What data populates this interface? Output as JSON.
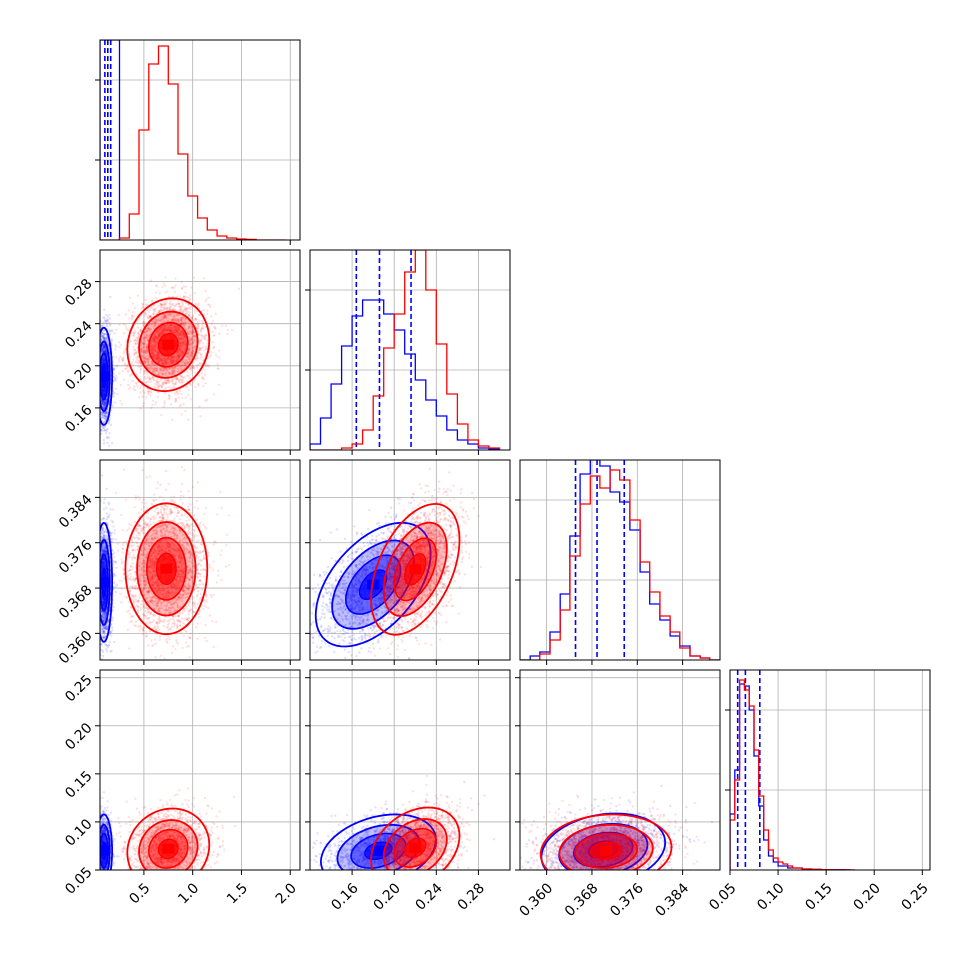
{
  "chart_data": {
    "type": "corner",
    "title": "",
    "n_params": 4,
    "grid": true,
    "colors": {
      "series_blue": "#0000ff",
      "series_red": "#ff0000",
      "grid": "#b0b0b0",
      "axes": "#000000"
    },
    "params": [
      {
        "range": [
          0.05,
          2.1
        ],
        "ticks": [
          0.5,
          1.0,
          1.5,
          2.0
        ],
        "tick_labels": [
          "0.5",
          "1.0",
          "1.5",
          "2.0"
        ]
      },
      {
        "range": [
          0.12,
          0.31
        ],
        "ticks": [
          0.16,
          0.2,
          0.24,
          0.28
        ],
        "tick_labels": [
          "0.16",
          "0.20",
          "0.24",
          "0.28"
        ]
      },
      {
        "range": [
          0.3553,
          0.3906
        ],
        "ticks": [
          0.36,
          0.368,
          0.376,
          0.384
        ],
        "tick_labels": [
          "0.360",
          "0.368",
          "0.376",
          "0.384"
        ]
      },
      {
        "range": [
          0.05,
          0.258
        ],
        "ticks": [
          0.05,
          0.1,
          0.15,
          0.2,
          0.25
        ],
        "tick_labels": [
          "0.05",
          "0.10",
          "0.15",
          "0.20",
          "0.25"
        ]
      }
    ],
    "series": [
      {
        "color": "blue",
        "histograms": [
          {
            "edges": [
              0.05,
              0.25
            ],
            "counts": [
              1.0
            ],
            "quantiles": [
              0.1,
              0.13,
              0.16
            ]
          },
          {
            "edges": [
              0.12,
              0.13,
              0.14,
              0.15,
              0.16,
              0.17,
              0.18,
              0.19,
              0.2,
              0.21,
              0.22,
              0.23,
              0.24,
              0.25,
              0.26,
              0.27,
              0.28,
              0.29,
              0.3
            ],
            "counts": [
              0.03,
              0.16,
              0.33,
              0.52,
              0.67,
              0.75,
              0.75,
              0.68,
              0.6,
              0.48,
              0.35,
              0.25,
              0.17,
              0.1,
              0.05,
              0.03,
              0.01,
              0.005
            ],
            "quantiles": [
              0.164,
              0.186,
              0.216
            ]
          },
          {
            "edges": [
              0.3553,
              0.3571,
              0.3588,
              0.3606,
              0.3624,
              0.3641,
              0.3659,
              0.3677,
              0.3694,
              0.3712,
              0.3729,
              0.3747,
              0.3765,
              0.3782,
              0.38,
              0.3818,
              0.3835,
              0.3853,
              0.3871,
              0.3888,
              0.3906
            ],
            "counts": [
              0.0,
              0.02,
              0.04,
              0.14,
              0.33,
              0.62,
              0.93,
              1.0,
              0.97,
              0.84,
              0.79,
              0.65,
              0.44,
              0.28,
              0.2,
              0.12,
              0.07,
              0.02,
              0.01,
              0.0
            ],
            "quantiles": [
              0.3651,
              0.3689,
              0.3737
            ]
          },
          {
            "edges": [
              0.05,
              0.055,
              0.06,
              0.065,
              0.07,
              0.075,
              0.08,
              0.085,
              0.09,
              0.095,
              0.1,
              0.105,
              0.11,
              0.115,
              0.12,
              0.125,
              0.13,
              0.135,
              0.14,
              0.145,
              0.15,
              0.155,
              0.16,
              0.165,
              0.17,
              0.175,
              0.18
            ],
            "counts": [
              0.28,
              0.5,
              0.93,
              0.92,
              0.8,
              0.57,
              0.32,
              0.15,
              0.07,
              0.04,
              0.02,
              0.02,
              0.01,
              0.01,
              0.01,
              0.005,
              0.005,
              0.003,
              0.003,
              0.002,
              0.002,
              0.001,
              0.001,
              0.001,
              0.0,
              0.0
            ],
            "quantiles": [
              0.058,
              0.066,
              0.081
            ]
          }
        ],
        "pairs": [
          {
            "x": 0,
            "y": 1,
            "mean": [
              0.09,
              0.19
            ],
            "std": [
              0.04,
              0.022
            ],
            "rho": 0.0,
            "n": 2000
          },
          {
            "x": 0,
            "y": 2,
            "mean": [
              0.09,
              0.369
            ],
            "std": [
              0.04,
              0.005
            ],
            "rho": 0.0,
            "n": 2000
          },
          {
            "x": 1,
            "y": 2,
            "mean": [
              0.18,
              0.3686
            ],
            "std": [
              0.026,
              0.0052
            ],
            "rho": 0.5,
            "n": 1600
          },
          {
            "x": 0,
            "y": 3,
            "mean": [
              0.09,
              0.07
            ],
            "std": [
              0.04,
              0.018
            ],
            "rho": 0.0,
            "n": 1400
          },
          {
            "x": 1,
            "y": 3,
            "mean": [
              0.185,
              0.07
            ],
            "std": [
              0.026,
              0.018
            ],
            "rho": 0.3,
            "n": 1400
          },
          {
            "x": 2,
            "y": 3,
            "mean": [
              0.37,
              0.071
            ],
            "std": [
              0.0052,
              0.018
            ],
            "rho": 0.2,
            "n": 1400
          }
        ]
      },
      {
        "color": "red",
        "histograms": [
          {
            "edges": [
              0.05,
              0.15,
              0.25,
              0.35,
              0.45,
              0.55,
              0.65,
              0.75,
              0.85,
              0.95,
              1.05,
              1.15,
              1.25,
              1.35,
              1.45,
              1.55,
              1.65,
              1.75,
              1.85,
              1.95
            ],
            "counts": [
              0.0,
              0.0,
              0.01,
              0.13,
              0.55,
              0.88,
              0.97,
              0.78,
              0.43,
              0.22,
              0.11,
              0.05,
              0.02,
              0.01,
              0.005,
              0.003,
              0.0,
              0.0,
              0.0
            ],
            "quantiles": []
          },
          {
            "edges": [
              0.12,
              0.13,
              0.14,
              0.15,
              0.16,
              0.17,
              0.18,
              0.19,
              0.2,
              0.21,
              0.22,
              0.23,
              0.24,
              0.25,
              0.26,
              0.27,
              0.28,
              0.29,
              0.3
            ],
            "counts": [
              0.0,
              0.0,
              0.0,
              0.01,
              0.03,
              0.1,
              0.27,
              0.51,
              0.68,
              0.89,
              1.0,
              0.8,
              0.53,
              0.28,
              0.13,
              0.05,
              0.02,
              0.01
            ],
            "quantiles": []
          },
          {
            "edges": [
              0.3553,
              0.3571,
              0.3588,
              0.3606,
              0.3624,
              0.3641,
              0.3659,
              0.3677,
              0.3694,
              0.3712,
              0.3729,
              0.3747,
              0.3765,
              0.3782,
              0.38,
              0.3818,
              0.3835,
              0.3853,
              0.3871,
              0.3888,
              0.3906
            ],
            "counts": [
              0.0,
              0.0,
              0.03,
              0.1,
              0.25,
              0.52,
              0.78,
              0.92,
              0.86,
              0.95,
              0.9,
              0.7,
              0.49,
              0.34,
              0.22,
              0.14,
              0.06,
              0.02,
              0.01,
              0.0
            ],
            "quantiles": []
          },
          {
            "edges": [
              0.05,
              0.055,
              0.06,
              0.065,
              0.07,
              0.075,
              0.08,
              0.085,
              0.09,
              0.095,
              0.1,
              0.105,
              0.11,
              0.115,
              0.12,
              0.125,
              0.13,
              0.135,
              0.14,
              0.145,
              0.15,
              0.155,
              0.16,
              0.165,
              0.17,
              0.175,
              0.18
            ],
            "counts": [
              0.25,
              0.45,
              0.95,
              0.9,
              0.82,
              0.6,
              0.37,
              0.2,
              0.1,
              0.06,
              0.04,
              0.03,
              0.02,
              0.01,
              0.01,
              0.005,
              0.005,
              0.003,
              0.003,
              0.002,
              0.002,
              0.001,
              0.001,
              0.001,
              0.001,
              0.0
            ],
            "quantiles": []
          }
        ],
        "pairs": [
          {
            "x": 0,
            "y": 1,
            "mean": [
              0.75,
              0.22
            ],
            "std": [
              0.2,
              0.021
            ],
            "rho": 0.1,
            "n": 2500
          },
          {
            "x": 0,
            "y": 2,
            "mean": [
              0.73,
              0.3714
            ],
            "std": [
              0.2,
              0.0055
            ],
            "rho": 0.0,
            "n": 2500
          },
          {
            "x": 1,
            "y": 2,
            "mean": [
              0.22,
              0.3713
            ],
            "std": [
              0.02,
              0.0055
            ],
            "rho": 0.45,
            "n": 2200
          },
          {
            "x": 0,
            "y": 3,
            "mean": [
              0.75,
              0.072
            ],
            "std": [
              0.2,
              0.02
            ],
            "rho": 0.1,
            "n": 1800
          },
          {
            "x": 1,
            "y": 3,
            "mean": [
              0.22,
              0.073
            ],
            "std": [
              0.02,
              0.02
            ],
            "rho": 0.3,
            "n": 1800
          },
          {
            "x": 2,
            "y": 3,
            "mean": [
              0.3705,
              0.07
            ],
            "std": [
              0.0055,
              0.018
            ],
            "rho": 0.1,
            "n": 1800
          }
        ]
      }
    ]
  }
}
